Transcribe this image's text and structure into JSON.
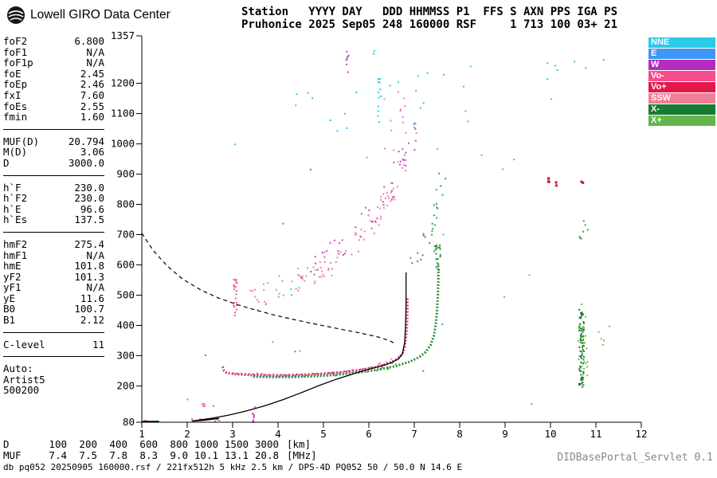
{
  "header": {
    "logo_text": "Lowell GIRO Data Center",
    "station_line1": "Station   YYYY DAY   DDD HHMMSS P1  FFS S AXN PPS IGA PS",
    "station_line2": "Pruhonice 2025 Sep05 248 160000 RSF     1 713 100 03+ 21"
  },
  "parameters": {
    "groups": [
      {
        "rows": [
          {
            "label": "foF2",
            "value": "6.800"
          },
          {
            "label": "foF1",
            "value": "N/A"
          },
          {
            "label": "foF1p",
            "value": "N/A"
          },
          {
            "label": "foE",
            "value": "2.45"
          },
          {
            "label": "foEp",
            "value": "2.46"
          },
          {
            "label": "fxI",
            "value": "7.60"
          },
          {
            "label": "foEs",
            "value": "2.55"
          },
          {
            "label": "fmin",
            "value": "1.60"
          }
        ]
      },
      {
        "rows": [
          {
            "label": "MUF(D)",
            "value": "20.794"
          },
          {
            "label": "M(D)",
            "value": "3.06"
          },
          {
            "label": "D",
            "value": "3000.0"
          }
        ]
      },
      {
        "rows": [
          {
            "label": "h`F",
            "value": "230.0"
          },
          {
            "label": "h`F2",
            "value": "230.0"
          },
          {
            "label": "h`E",
            "value": "96.6"
          },
          {
            "label": "h`Es",
            "value": "137.5"
          }
        ]
      },
      {
        "rows": [
          {
            "label": "hmF2",
            "value": "275.4"
          },
          {
            "label": "hmF1",
            "value": "N/A"
          },
          {
            "label": "hmE",
            "value": "101.8"
          },
          {
            "label": "yF2",
            "value": "101.3"
          },
          {
            "label": "yF1",
            "value": "N/A"
          },
          {
            "label": "yE",
            "value": "11.6"
          },
          {
            "label": "B0",
            "value": "100.7"
          },
          {
            "label": "B1",
            "value": "2.12"
          }
        ]
      },
      {
        "rows": [
          {
            "label": "C-level",
            "value": "11"
          }
        ]
      }
    ],
    "auto_block": [
      "Auto:",
      "Artist5",
      "500200"
    ]
  },
  "legend": [
    {
      "label": "NNE",
      "color": "#29cbe8"
    },
    {
      "label": "E",
      "color": "#3e97f5"
    },
    {
      "label": "W",
      "color": "#b52cbe"
    },
    {
      "label": "Vo-",
      "color": "#f64d8e"
    },
    {
      "label": "Vo+",
      "color": "#e6174b"
    },
    {
      "label": "SSW",
      "color": "#ef7f95"
    },
    {
      "label": "X-",
      "color": "#177c32"
    },
    {
      "label": "X+",
      "color": "#67b34c"
    }
  ],
  "footer": {
    "d_row": {
      "label": "D",
      "values": [
        "100",
        "200",
        "400",
        "600",
        "800",
        "1000",
        "1500",
        "3000"
      ],
      "unit": "[km]"
    },
    "muf_row": {
      "label": "MUF",
      "values": [
        "7.4",
        "7.5",
        "7.8",
        "8.3",
        "9.0",
        "10.1",
        "13.1",
        "20.8"
      ],
      "unit": "[MHz]"
    },
    "status_line": "db pq052 20250905 160000.rsf / 221fx512h 5 kHz 2.5 km / DPS-4D PQ052 50 / 50.0 N 14.6 E",
    "servlet_label": "DIDBasePortal_Servlet 0.1"
  },
  "chart_data": {
    "type": "scatter",
    "title": "",
    "xlabel": "",
    "ylabel": "",
    "x_unit": "MHz",
    "y_unit": "km",
    "xlim": [
      1,
      12
    ],
    "ylim": [
      80,
      1357
    ],
    "xticks": [
      1,
      2,
      3,
      4,
      5,
      6,
      7,
      8,
      9,
      10,
      11,
      12
    ],
    "yticks": [
      80,
      200,
      300,
      400,
      500,
      600,
      700,
      800,
      900,
      1000,
      1100,
      1200,
      1357
    ],
    "grid": false,
    "legend_position": "right",
    "traces": [
      {
        "name": "f-trace-o-mode-magenta",
        "color": "#bc3fb4",
        "width": 2,
        "dash": "2 3",
        "points": [
          [
            3.0,
            242
          ],
          [
            3.4,
            239
          ],
          [
            3.8,
            237
          ],
          [
            4.2,
            237
          ],
          [
            4.6,
            239
          ],
          [
            5.0,
            242
          ],
          [
            5.4,
            247
          ],
          [
            5.8,
            254
          ],
          [
            6.1,
            262
          ]
        ]
      },
      {
        "name": "f-trace-o-mode",
        "color": "#e4367e",
        "width": 3,
        "dash": "2 2",
        "points": [
          [
            2.78,
            264
          ],
          [
            2.81,
            250
          ],
          [
            2.87,
            243
          ],
          [
            3.05,
            239
          ],
          [
            3.35,
            236
          ],
          [
            3.75,
            234
          ],
          [
            4.15,
            234
          ],
          [
            4.55,
            236
          ],
          [
            4.95,
            239
          ],
          [
            5.35,
            244
          ],
          [
            5.75,
            251
          ],
          [
            6.05,
            259
          ],
          [
            6.3,
            268
          ],
          [
            6.5,
            279
          ],
          [
            6.65,
            292
          ],
          [
            6.74,
            308
          ],
          [
            6.79,
            330
          ],
          [
            6.82,
            360
          ],
          [
            6.84,
            400
          ],
          [
            6.85,
            445
          ],
          [
            6.85,
            490
          ]
        ]
      },
      {
        "name": "f-trace-x-mode",
        "color": "#2f8f3c",
        "width": 3,
        "dash": "2 2",
        "points": [
          [
            3.45,
            231
          ],
          [
            3.85,
            229
          ],
          [
            4.25,
            229
          ],
          [
            4.65,
            231
          ],
          [
            5.05,
            234
          ],
          [
            5.45,
            239
          ],
          [
            5.85,
            246
          ],
          [
            6.25,
            255
          ],
          [
            6.6,
            266
          ],
          [
            6.9,
            280
          ],
          [
            7.1,
            294
          ],
          [
            7.25,
            312
          ],
          [
            7.36,
            335
          ],
          [
            7.43,
            365
          ],
          [
            7.47,
            400
          ],
          [
            7.5,
            445
          ],
          [
            7.52,
            495
          ],
          [
            7.53,
            545
          ],
          [
            7.53,
            590
          ]
        ]
      },
      {
        "name": "baseline-left",
        "color": "#000000",
        "width": 2,
        "dash": null,
        "points": [
          [
            1.0,
            82
          ],
          [
            1.38,
            82
          ]
        ]
      },
      {
        "name": "e-region-black",
        "color": "#000000",
        "width": 1.5,
        "dash": null,
        "points": [
          [
            2.12,
            84
          ],
          [
            2.4,
            87
          ],
          [
            2.7,
            93
          ]
        ]
      },
      {
        "name": "transmission-curve-dashed",
        "color": "#000000",
        "width": 1.2,
        "dash": "5 4",
        "points": [
          [
            1.0,
            705
          ],
          [
            1.25,
            648
          ],
          [
            1.55,
            598
          ],
          [
            1.9,
            553
          ],
          [
            2.3,
            517
          ],
          [
            2.7,
            490
          ],
          [
            3.1,
            469
          ],
          [
            3.5,
            451
          ],
          [
            3.9,
            435
          ],
          [
            4.3,
            421
          ],
          [
            4.7,
            408
          ],
          [
            5.1,
            396
          ],
          [
            5.5,
            384
          ],
          [
            5.9,
            372
          ],
          [
            6.2,
            362
          ],
          [
            6.45,
            350
          ],
          [
            6.6,
            338
          ]
        ]
      },
      {
        "name": "profile-curve",
        "color": "#000000",
        "width": 1.3,
        "dash": null,
        "points": [
          [
            2.1,
            84
          ],
          [
            2.5,
            92
          ],
          [
            2.9,
            103
          ],
          [
            3.3,
            117
          ],
          [
            3.7,
            134
          ],
          [
            4.1,
            154
          ],
          [
            4.5,
            177
          ],
          [
            4.9,
            201
          ],
          [
            5.3,
            223
          ],
          [
            5.7,
            242
          ],
          [
            6.0,
            255
          ],
          [
            6.3,
            267
          ],
          [
            6.5,
            277
          ],
          [
            6.65,
            289
          ],
          [
            6.74,
            306
          ],
          [
            6.79,
            345
          ],
          [
            6.81,
            410
          ],
          [
            6.82,
            480
          ],
          [
            6.82,
            575
          ]
        ]
      }
    ],
    "clusters": [
      {
        "name": "o-trace-speckle",
        "color": "#ec7fb4",
        "kind": "band",
        "n": 20,
        "jx": 0.1,
        "jy": 6,
        "size": 2,
        "path": [
          [
            3.0,
            241
          ],
          [
            4.2,
            236
          ],
          [
            5.4,
            246
          ],
          [
            6.3,
            270
          ],
          [
            6.7,
            300
          ]
        ]
      },
      {
        "name": "x-trace-speckle",
        "color": "#67b34c",
        "kind": "band",
        "n": 20,
        "jx": 0.1,
        "jy": 6,
        "size": 2,
        "path": [
          [
            4.0,
            229
          ],
          [
            5.2,
            236
          ],
          [
            6.2,
            254
          ],
          [
            7.0,
            287
          ]
        ]
      },
      {
        "name": "spread-band-pink",
        "color": "#ec7fb4",
        "kind": "band",
        "n": 95,
        "jx": 0.12,
        "jy": 45,
        "size": 2,
        "path": [
          [
            3.3,
            480
          ],
          [
            3.9,
            515
          ],
          [
            4.5,
            555
          ],
          [
            5.1,
            605
          ],
          [
            5.6,
            660
          ],
          [
            6.0,
            720
          ],
          [
            6.35,
            790
          ],
          [
            6.6,
            870
          ],
          [
            6.8,
            950
          ]
        ]
      },
      {
        "name": "spread-band-magenta",
        "color": "#c44fb8",
        "kind": "band",
        "n": 50,
        "jx": 0.1,
        "jy": 38,
        "size": 2,
        "path": [
          [
            4.4,
            565
          ],
          [
            5.0,
            620
          ],
          [
            5.6,
            690
          ],
          [
            6.1,
            770
          ],
          [
            6.5,
            860
          ],
          [
            6.8,
            960
          ],
          [
            7.0,
            1040
          ]
        ]
      },
      {
        "name": "spread-band-green",
        "color": "#3aa04a",
        "kind": "band",
        "n": 26,
        "jx": 0.08,
        "jy": 30,
        "size": 2,
        "path": [
          [
            6.95,
            605
          ],
          [
            7.15,
            660
          ],
          [
            7.35,
            725
          ],
          [
            7.5,
            800
          ],
          [
            7.62,
            880
          ]
        ]
      },
      {
        "name": "x-asymptote-specks",
        "color": "#2f8f3c",
        "kind": "box",
        "n": 22,
        "x0": 7.44,
        "x1": 7.58,
        "y0": 580,
        "y1": 668,
        "size": 2
      },
      {
        "name": "top-cyan-specks",
        "color": "#2bc7e4",
        "kind": "box",
        "n": 24,
        "x0": 4.3,
        "x1": 8.6,
        "y0": 1040,
        "y1": 1335,
        "size": 2
      },
      {
        "name": "right-cyan-specks",
        "color": "#2bc7e4",
        "kind": "box",
        "n": 8,
        "x0": 9.9,
        "x1": 11.3,
        "y0": 1130,
        "y1": 1290,
        "size": 2
      },
      {
        "name": "random-cyan-specks",
        "color": "#2bc7e4",
        "kind": "box",
        "n": 16,
        "x0": 1.6,
        "x1": 9.6,
        "y0": 140,
        "y1": 1010,
        "size": 2
      },
      {
        "name": "random-blue-specks",
        "color": "#3b8ce0",
        "kind": "box",
        "n": 7,
        "x0": 2.0,
        "x1": 9.0,
        "y0": 200,
        "y1": 1250,
        "size": 2
      },
      {
        "name": "f2-top-pink-specks",
        "color": "#ec7fb4",
        "kind": "box",
        "n": 14,
        "x0": 6.3,
        "x1": 7.1,
        "y0": 950,
        "y1": 1190,
        "size": 2
      },
      {
        "name": "magenta-streak-top",
        "color": "#c44fb8",
        "kind": "box",
        "n": 8,
        "x0": 5.48,
        "x1": 5.56,
        "y0": 1235,
        "y1": 1310,
        "size": 2
      },
      {
        "name": "cyan-streak-6mhz",
        "color": "#2bc7e4",
        "kind": "box",
        "n": 12,
        "x0": 6.2,
        "x1": 6.28,
        "y0": 1050,
        "y1": 1215,
        "size": 2
      },
      {
        "name": "pink-streak-3mhz",
        "color": "#e85b9a",
        "kind": "box",
        "n": 20,
        "x0": 3.02,
        "x1": 3.1,
        "y0": 430,
        "y1": 555,
        "size": 2
      },
      {
        "name": "magenta-streak-3p45",
        "color": "#c44fb8",
        "kind": "box",
        "n": 10,
        "x0": 3.43,
        "x1": 3.49,
        "y0": 80,
        "y1": 132,
        "size": 2
      },
      {
        "name": "green-bar-10p7",
        "color": "#1f7a2e",
        "kind": "box",
        "n": 80,
        "x0": 10.63,
        "x1": 10.74,
        "y0": 196,
        "y1": 452,
        "size": 2
      },
      {
        "name": "green-bar-10p7-light",
        "color": "#6cc24a",
        "kind": "box",
        "n": 26,
        "x0": 10.6,
        "x1": 10.82,
        "y0": 205,
        "y1": 470,
        "size": 2
      },
      {
        "name": "green-specks-10p7-high",
        "color": "#3aa04a",
        "kind": "box",
        "n": 7,
        "x0": 10.6,
        "x1": 10.85,
        "y0": 685,
        "y1": 745,
        "size": 2
      },
      {
        "name": "red-specks-10mhz",
        "color": "#cc1236",
        "kind": "box",
        "n": 6,
        "x0": 9.95,
        "x1": 10.15,
        "y0": 852,
        "y1": 886,
        "size": 3
      },
      {
        "name": "red-speck-10p7",
        "color": "#cc1236",
        "kind": "box",
        "n": 2,
        "x0": 10.66,
        "x1": 10.72,
        "y0": 860,
        "y1": 876,
        "size": 3
      },
      {
        "name": "es-pink-specks",
        "color": "#e85b9a",
        "kind": "box",
        "n": 5,
        "x0": 2.3,
        "x1": 2.62,
        "y0": 133,
        "y1": 142,
        "size": 2
      },
      {
        "name": "bottomleft-pink",
        "color": "#e85b9a",
        "kind": "box",
        "n": 6,
        "x0": 1.0,
        "x1": 1.15,
        "y0": 80,
        "y1": 85,
        "size": 2
      },
      {
        "name": "eregion-pink",
        "color": "#e85b9a",
        "kind": "box",
        "n": 8,
        "x0": 2.1,
        "x1": 2.75,
        "y0": 82,
        "y1": 96,
        "size": 2
      },
      {
        "name": "green-specks-11mhz",
        "color": "#6cc24a",
        "kind": "box",
        "n": 5,
        "x0": 11.05,
        "x1": 11.3,
        "y0": 330,
        "y1": 430,
        "size": 2
      }
    ]
  }
}
